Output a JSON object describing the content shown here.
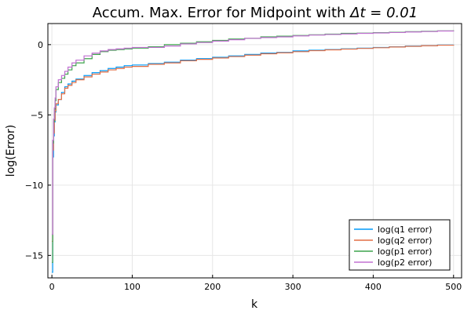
{
  "chart_data": {
    "type": "line",
    "title_text": "Accum. Max. Error for Midpoint with ",
    "title_math": "Δt = 0.01",
    "xlabel": "k",
    "ylabel": "log(Error)",
    "xlim": [
      -5,
      510
    ],
    "ylim": [
      -16.6,
      1.5
    ],
    "xticks": [
      0,
      100,
      200,
      300,
      400,
      500
    ],
    "yticks": [
      0,
      -5,
      -10,
      -15
    ],
    "grid": true,
    "legend_position": "bottom-right",
    "series": [
      {
        "name": "log(q1 error)",
        "color": "#009af9",
        "x": [
          0,
          1,
          2,
          3,
          4,
          5,
          8,
          12,
          16,
          20,
          25,
          30,
          40,
          50,
          60,
          70,
          80,
          90,
          100,
          120,
          140,
          160,
          180,
          200,
          220,
          240,
          260,
          280,
          300,
          320,
          340,
          360,
          380,
          400,
          420,
          440,
          460,
          480,
          500
        ],
        "y": [
          -16.2,
          -8.0,
          -6.5,
          -5.5,
          -4.8,
          -4.3,
          -3.9,
          -3.4,
          -3.0,
          -2.8,
          -2.6,
          -2.45,
          -2.2,
          -2.0,
          -1.85,
          -1.7,
          -1.6,
          -1.5,
          -1.45,
          -1.35,
          -1.25,
          -1.1,
          -1.0,
          -0.9,
          -0.8,
          -0.7,
          -0.6,
          -0.55,
          -0.45,
          -0.4,
          -0.35,
          -0.3,
          -0.25,
          -0.2,
          -0.15,
          -0.1,
          -0.07,
          -0.03,
          0.0
        ]
      },
      {
        "name": "log(q2 error)",
        "color": "#e26f46",
        "x": [
          0,
          1,
          2,
          3,
          4,
          5,
          8,
          12,
          16,
          20,
          25,
          30,
          40,
          50,
          60,
          70,
          80,
          90,
          100,
          120,
          140,
          160,
          180,
          200,
          220,
          240,
          260,
          280,
          300,
          320,
          340,
          360,
          380,
          400,
          420,
          440,
          460,
          480,
          500
        ],
        "y": [
          -14.0,
          -7.5,
          -6.3,
          -5.4,
          -4.7,
          -4.2,
          -3.9,
          -3.5,
          -3.1,
          -2.9,
          -2.7,
          -2.5,
          -2.3,
          -2.1,
          -1.95,
          -1.8,
          -1.7,
          -1.6,
          -1.55,
          -1.4,
          -1.3,
          -1.15,
          -1.05,
          -0.95,
          -0.85,
          -0.75,
          -0.65,
          -0.58,
          -0.5,
          -0.43,
          -0.37,
          -0.32,
          -0.27,
          -0.22,
          -0.17,
          -0.12,
          -0.08,
          -0.04,
          -0.01
        ]
      },
      {
        "name": "log(p1 error)",
        "color": "#3da44d",
        "x": [
          0,
          1,
          2,
          3,
          4,
          5,
          8,
          12,
          16,
          20,
          25,
          30,
          40,
          50,
          60,
          70,
          80,
          90,
          100,
          120,
          140,
          160,
          180,
          200,
          220,
          240,
          260,
          280,
          300,
          320,
          340,
          360,
          380,
          400,
          420,
          440,
          460,
          480,
          500
        ],
        "y": [
          -15.5,
          -7.0,
          -5.5,
          -4.6,
          -4.0,
          -3.2,
          -2.7,
          -2.4,
          -2.1,
          -1.8,
          -1.5,
          -1.3,
          -1.0,
          -0.7,
          -0.5,
          -0.4,
          -0.35,
          -0.3,
          -0.25,
          -0.15,
          0.0,
          0.1,
          0.2,
          0.3,
          0.4,
          0.45,
          0.55,
          0.6,
          0.65,
          0.7,
          0.75,
          0.8,
          0.82,
          0.85,
          0.88,
          0.92,
          0.95,
          0.98,
          1.02
        ]
      },
      {
        "name": "log(p2 error)",
        "color": "#c271d2",
        "x": [
          0,
          1,
          2,
          3,
          4,
          5,
          8,
          12,
          16,
          20,
          25,
          30,
          40,
          50,
          60,
          70,
          80,
          90,
          100,
          120,
          140,
          160,
          180,
          200,
          220,
          240,
          260,
          280,
          300,
          320,
          340,
          360,
          380,
          400,
          420,
          440,
          460,
          480,
          500
        ],
        "y": [
          -13.5,
          -6.8,
          -5.3,
          -4.5,
          -3.8,
          -3.0,
          -2.5,
          -2.2,
          -1.9,
          -1.6,
          -1.3,
          -1.1,
          -0.8,
          -0.6,
          -0.45,
          -0.35,
          -0.3,
          -0.25,
          -0.2,
          -0.2,
          -0.1,
          0.05,
          0.15,
          0.25,
          0.35,
          0.45,
          0.5,
          0.55,
          0.62,
          0.68,
          0.72,
          0.76,
          0.8,
          0.83,
          0.86,
          0.9,
          0.93,
          0.97,
          1.0
        ]
      }
    ]
  }
}
